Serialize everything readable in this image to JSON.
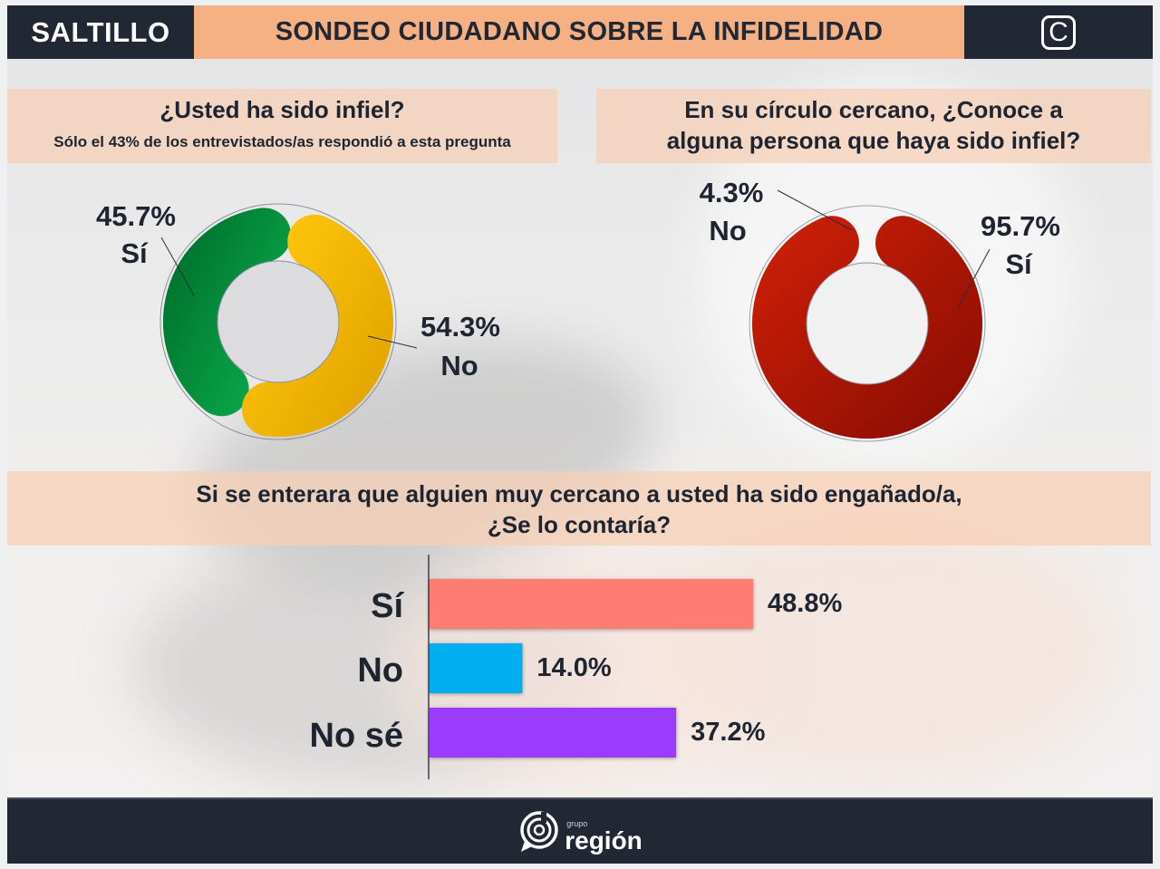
{
  "header": {
    "city": "SALTILLO",
    "title": "SONDEO CIUDADANO SOBRE LA INFIDELIDAD",
    "logo_icon": "c-logo-icon"
  },
  "footer": {
    "brand_small": "grupo",
    "brand_name": "región",
    "brand_icon": "grupo-region-logo-icon"
  },
  "colors": {
    "header_dark": "#222833",
    "header_accent": "#f5b184",
    "question_band": "#f7ceb4",
    "text_dark": "#1e2430"
  },
  "chart_data": [
    {
      "type": "pie",
      "variant": "donut",
      "title": "¿Usted ha sido infiel?",
      "subtitle": "Sólo el 43% de los entrevistados/as respondió a esta pregunta",
      "categories": [
        "Sí",
        "No"
      ],
      "values": [
        45.7,
        54.3
      ],
      "value_labels": [
        "45.7%",
        "54.3%"
      ],
      "colors": [
        "#0a9a42",
        "#f7bb0a"
      ],
      "unit": "%"
    },
    {
      "type": "pie",
      "variant": "donut",
      "title": "En su círculo cercano, ¿Conoce a alguna persona que haya sido infiel?",
      "categories": [
        "Sí",
        "No"
      ],
      "values": [
        95.7,
        4.3
      ],
      "value_labels": [
        "95.7%",
        "4.3%"
      ],
      "colors": [
        "#b51a08",
        "transparent"
      ],
      "unit": "%"
    },
    {
      "type": "bar",
      "orientation": "horizontal",
      "title": "Si se enterara que alguien muy cercano a usted ha sido engañado/a, ¿Se lo contaría?",
      "title_lines": [
        "Si se enterara que alguien muy cercano a usted ha sido engañado/a,",
        "¿Se lo contaría?"
      ],
      "categories": [
        "Sí",
        "No",
        "No sé"
      ],
      "values": [
        48.8,
        14.0,
        37.2
      ],
      "value_labels": [
        "48.8%",
        "14.0%",
        "37.2%"
      ],
      "colors": [
        "#ff7b73",
        "#00aeef",
        "#9b3bff"
      ],
      "xlim": [
        0,
        100
      ],
      "grid": false,
      "unit": "%"
    }
  ]
}
